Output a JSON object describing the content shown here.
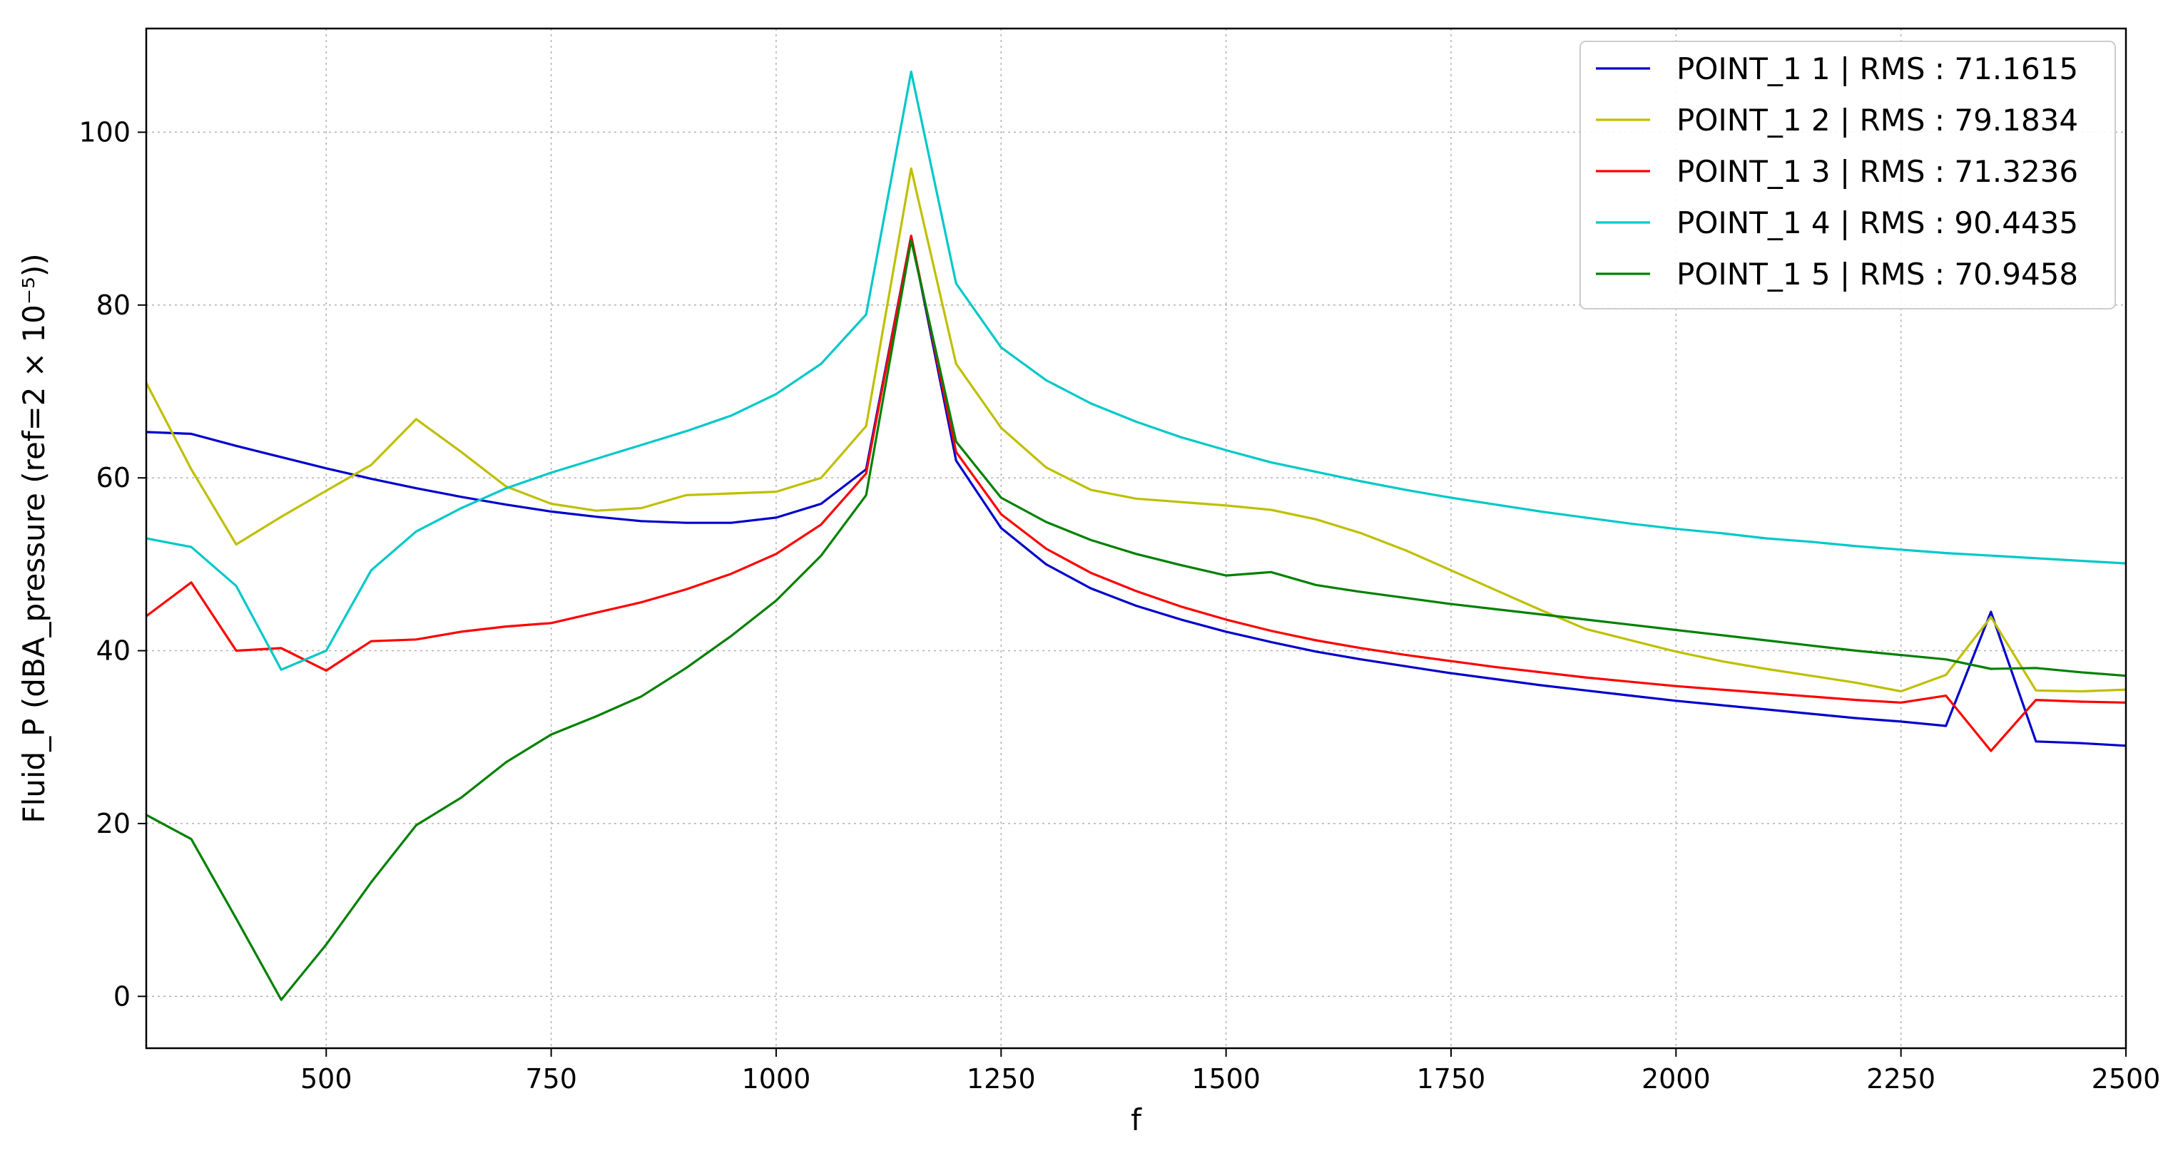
{
  "chart_data": {
    "type": "line",
    "xlabel": "f",
    "ylabel": "Fluid_P (dBA_pressure (ref=2 × 10⁻⁵))",
    "xlim": [
      300,
      2500
    ],
    "ylim": [
      -6,
      112
    ],
    "x_ticks": [
      500,
      750,
      1000,
      1250,
      1500,
      1750,
      2000,
      2250,
      2500
    ],
    "y_ticks": [
      0,
      20,
      40,
      60,
      80,
      100
    ],
    "grid": true,
    "legend_position": "top-right",
    "x": [
      300,
      350,
      400,
      450,
      500,
      550,
      600,
      650,
      700,
      750,
      800,
      850,
      900,
      950,
      1000,
      1050,
      1100,
      1150,
      1200,
      1250,
      1300,
      1350,
      1400,
      1450,
      1500,
      1550,
      1600,
      1650,
      1700,
      1750,
      1800,
      1850,
      1900,
      1950,
      2000,
      2050,
      2100,
      2150,
      2200,
      2250,
      2300,
      2350,
      2400,
      2450,
      2500
    ],
    "series": [
      {
        "name": "POINT_1 1 | RMS : 71.1615",
        "color": "#0000cc",
        "values": [
          65.3,
          65.1,
          63.7,
          62.4,
          61.1,
          59.9,
          58.8,
          57.8,
          56.9,
          56.1,
          55.5,
          55.0,
          54.8,
          54.8,
          55.4,
          57.0,
          61.0,
          88.0,
          62.0,
          54.2,
          50.0,
          47.2,
          45.2,
          43.6,
          42.2,
          41.0,
          39.9,
          39.0,
          38.2,
          37.4,
          36.7,
          36.0,
          35.4,
          34.8,
          34.2,
          33.7,
          33.2,
          32.7,
          32.2,
          31.8,
          31.3,
          44.5,
          29.5,
          29.3,
          29.0
        ]
      },
      {
        "name": "POINT_1 2 | RMS : 79.1834",
        "color": "#bfbf00",
        "values": [
          71.0,
          61.0,
          52.3,
          55.5,
          58.5,
          61.5,
          66.8,
          63.0,
          59.0,
          57.0,
          56.2,
          56.5,
          58.0,
          58.2,
          58.4,
          60.0,
          66.0,
          95.8,
          73.2,
          65.8,
          61.2,
          58.6,
          57.6,
          57.2,
          56.8,
          56.3,
          55.2,
          53.6,
          51.6,
          49.3,
          47.0,
          44.7,
          42.5,
          41.2,
          39.9,
          38.8,
          37.9,
          37.1,
          36.3,
          35.3,
          37.2,
          43.9,
          35.4,
          35.3,
          35.5
        ]
      },
      {
        "name": "POINT_1 3 | RMS : 71.3236",
        "color": "#ff0000",
        "values": [
          44.0,
          47.9,
          40.0,
          40.3,
          37.7,
          41.1,
          41.3,
          42.2,
          42.8,
          43.2,
          44.4,
          45.6,
          47.1,
          48.9,
          51.2,
          54.6,
          60.5,
          88.0,
          63.0,
          55.8,
          51.8,
          49.0,
          46.9,
          45.1,
          43.6,
          42.3,
          41.2,
          40.3,
          39.5,
          38.8,
          38.1,
          37.5,
          36.9,
          36.4,
          35.9,
          35.5,
          35.1,
          34.7,
          34.3,
          34.0,
          34.8,
          28.4,
          34.3,
          34.1,
          34.0
        ]
      },
      {
        "name": "POINT_1 4 | RMS : 90.4435",
        "color": "#00c8c8",
        "values": [
          53.0,
          52.0,
          47.5,
          37.8,
          40.0,
          49.3,
          53.8,
          56.5,
          58.8,
          60.6,
          62.2,
          63.8,
          65.4,
          67.2,
          69.7,
          73.2,
          78.9,
          107.0,
          82.5,
          75.1,
          71.3,
          68.6,
          66.5,
          64.7,
          63.2,
          61.8,
          60.7,
          59.6,
          58.6,
          57.7,
          56.9,
          56.1,
          55.4,
          54.7,
          54.1,
          53.6,
          53.0,
          52.6,
          52.1,
          51.7,
          51.3,
          51.0,
          50.7,
          50.4,
          50.1
        ]
      },
      {
        "name": "POINT_1 5 | RMS : 70.9458",
        "color": "#008000",
        "values": [
          21.0,
          18.2,
          9.0,
          -0.4,
          6.0,
          13.2,
          19.8,
          23.0,
          27.1,
          30.3,
          32.4,
          34.7,
          38.0,
          41.7,
          45.8,
          51.0,
          58.0,
          87.5,
          64.2,
          57.7,
          54.9,
          52.8,
          51.2,
          49.9,
          48.7,
          49.1,
          47.6,
          46.8,
          46.1,
          45.4,
          44.8,
          44.2,
          43.6,
          43.0,
          42.4,
          41.8,
          41.2,
          40.6,
          40.0,
          39.5,
          39.0,
          37.9,
          38.0,
          37.5,
          37.1
        ]
      }
    ]
  }
}
